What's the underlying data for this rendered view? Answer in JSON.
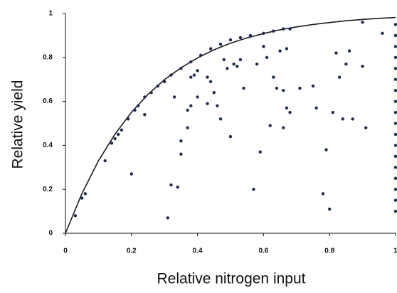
{
  "chart_data": {
    "type": "scatter",
    "xlabel": "Relative nitrogen input",
    "ylabel": "Relative yield",
    "xlim": [
      0,
      1
    ],
    "ylim": [
      0,
      1
    ],
    "xticks": [
      0,
      0.2,
      0.4,
      0.6,
      0.8,
      1
    ],
    "yticks": [
      0,
      0.2,
      0.4,
      0.6,
      0.8,
      1
    ],
    "points": {
      "color": "#1f2d4a",
      "x": [
        0.03,
        0.05,
        0.06,
        0.12,
        0.14,
        0.15,
        0.16,
        0.17,
        0.19,
        0.21,
        0.22,
        0.24,
        0.26,
        0.28,
        0.3,
        0.32,
        0.35,
        0.38,
        0.41,
        0.44,
        0.47,
        0.5,
        0.53,
        0.56,
        0.6,
        0.63,
        0.66,
        0.68,
        0.9,
        0.2,
        0.24,
        0.31,
        0.32,
        0.33,
        0.34,
        0.35,
        0.35,
        0.37,
        0.37,
        0.38,
        0.38,
        0.39,
        0.4,
        0.4,
        0.43,
        0.43,
        0.44,
        0.45,
        0.46,
        0.47,
        0.48,
        0.49,
        0.5,
        0.51,
        0.52,
        0.53,
        0.54,
        0.57,
        0.58,
        0.59,
        0.6,
        0.61,
        0.62,
        0.63,
        0.64,
        0.65,
        0.66,
        0.66,
        0.67,
        0.67,
        0.68,
        0.71,
        0.75,
        0.76,
        0.78,
        0.79,
        0.8,
        0.81,
        0.82,
        0.83,
        0.84,
        0.85,
        0.86,
        0.87,
        0.9,
        0.91,
        0.96,
        1,
        1,
        1,
        1,
        1,
        1,
        1,
        1,
        1,
        1,
        1,
        1,
        1,
        1,
        1,
        1,
        1,
        1
      ],
      "y": [
        0.08,
        0.16,
        0.18,
        0.33,
        0.41,
        0.43,
        0.45,
        0.47,
        0.52,
        0.56,
        0.58,
        0.62,
        0.64,
        0.67,
        0.69,
        0.72,
        0.75,
        0.78,
        0.81,
        0.84,
        0.86,
        0.88,
        0.89,
        0.9,
        0.91,
        0.92,
        0.93,
        0.93,
        0.96,
        0.27,
        0.54,
        0.07,
        0.22,
        0.62,
        0.21,
        0.36,
        0.42,
        0.48,
        0.56,
        0.58,
        0.71,
        0.72,
        0.62,
        0.74,
        0.71,
        0.59,
        0.69,
        0.64,
        0.58,
        0.52,
        0.79,
        0.75,
        0.44,
        0.77,
        0.76,
        0.79,
        0.66,
        0.2,
        0.77,
        0.37,
        0.85,
        0.8,
        0.49,
        0.71,
        0.66,
        0.83,
        0.48,
        0.65,
        0.84,
        0.57,
        0.55,
        0.66,
        0.67,
        0.57,
        0.18,
        0.38,
        0.11,
        0.55,
        0.82,
        0.71,
        0.52,
        0.77,
        0.83,
        0.52,
        0.76,
        0.48,
        0.91,
        0.1,
        0.15,
        0.2,
        0.25,
        0.3,
        0.35,
        0.4,
        0.45,
        0.5,
        0.55,
        0.6,
        0.65,
        0.7,
        0.75,
        0.8,
        0.85,
        0.9,
        0.95
      ]
    },
    "curve": {
      "color": "#1a1a1a",
      "x": [
        0,
        0.05,
        0.1,
        0.15,
        0.2,
        0.25,
        0.3,
        0.35,
        0.4,
        0.45,
        0.5,
        0.55,
        0.6,
        0.65,
        0.7,
        0.75,
        0.8,
        0.85,
        0.9,
        0.95,
        1
      ],
      "y": [
        0,
        0.181,
        0.33,
        0.451,
        0.551,
        0.632,
        0.699,
        0.753,
        0.798,
        0.835,
        0.865,
        0.889,
        0.909,
        0.926,
        0.939,
        0.95,
        0.959,
        0.967,
        0.973,
        0.978,
        0.982
      ]
    }
  }
}
